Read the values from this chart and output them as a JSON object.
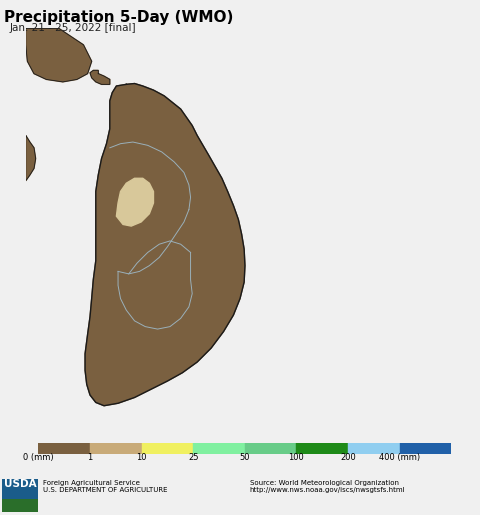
{
  "title": "Precipitation 5-Day (WMO)",
  "subtitle": "Jan. 21 - 25, 2022 [final]",
  "title_fontsize": 11,
  "subtitle_fontsize": 7.5,
  "background_color": "#c8f0f4",
  "land_color": "#7a6040",
  "outline_color": "#1a1a1a",
  "internal_border_color": "#9ab0ba",
  "colorbar_colors": [
    "#7a6040",
    "#c8aa78",
    "#f0f060",
    "#80f0a0",
    "#68cc88",
    "#1e8a18",
    "#90cef0",
    "#2060a8"
  ],
  "colorbar_labels": [
    "0 (mm)",
    "1",
    "10",
    "25",
    "50",
    "100",
    "200",
    "400 (mm)"
  ],
  "source_text": "Source: World Meteorological Organization\nhttp://www.nws.noaa.gov/iscs/nwsgtsfs.html",
  "usda_text": "Foreign Agricultural Service\nU.S. DEPARTMENT OF AGRICULTURE",
  "highlight_color": "#d8c89a",
  "map_xlim": [
    78.8,
    84.0
  ],
  "map_ylim": [
    5.5,
    10.5
  ],
  "fig_bg": "#f0f0f0",
  "footer_bg": "#e8e8e8"
}
